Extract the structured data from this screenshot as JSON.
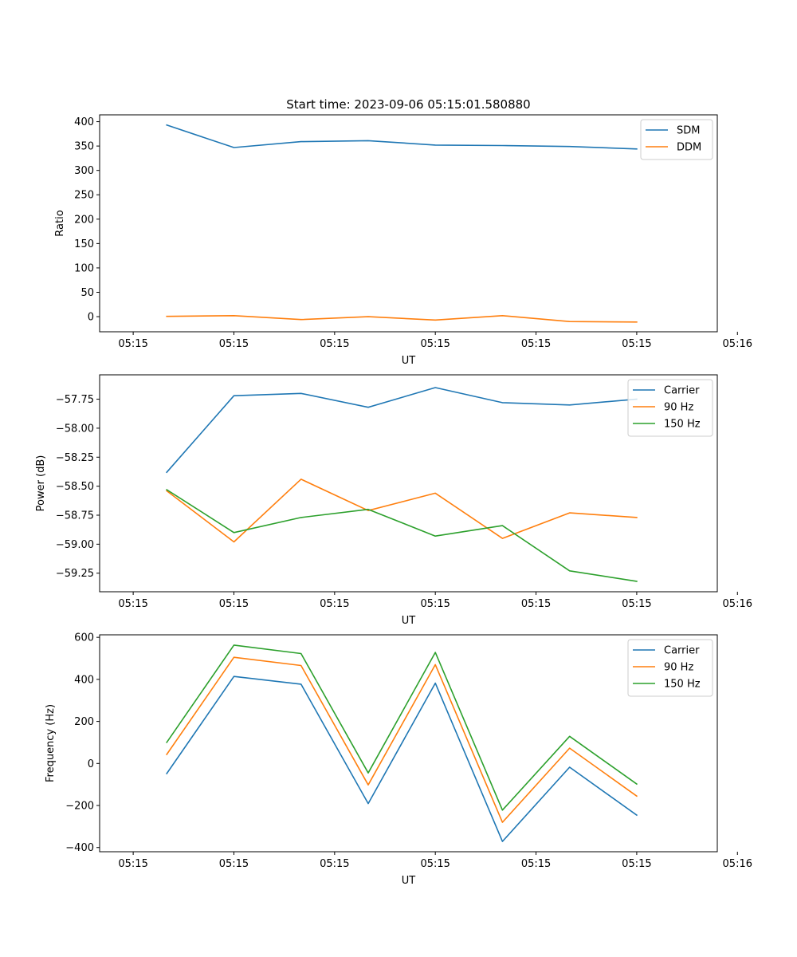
{
  "chart_data": [
    {
      "type": "line",
      "title": "Start time: 2023-09-06 05:15:01.580880",
      "xlabel": "UT",
      "ylabel": "Ratio",
      "xlim": [
        -0.5,
        8.7
      ],
      "x": [
        0.5,
        1.5,
        2.5,
        3.5,
        4.5,
        5.5,
        6.5,
        7.5
      ],
      "x_ticks": [
        0,
        1.5,
        3,
        4.5,
        6,
        7.5,
        9
      ],
      "x_tick_labels": [
        "05:15",
        "05:15",
        "05:15",
        "05:15",
        "05:15",
        "05:15",
        "05:16"
      ],
      "ylim": [
        -31,
        414
      ],
      "y_ticks": [
        0,
        50,
        100,
        150,
        200,
        250,
        300,
        350,
        400
      ],
      "y_tick_labels": [
        "0",
        "50",
        "100",
        "150",
        "200",
        "250",
        "300",
        "350",
        "400"
      ],
      "legend_position": "top-right",
      "series": [
        {
          "name": "SDM",
          "color": "#1f77b4",
          "values": [
            393,
            347,
            359,
            361,
            352,
            351,
            349,
            344
          ]
        },
        {
          "name": "DDM",
          "color": "#ff7f0e",
          "values": [
            0.5,
            2,
            -6,
            0,
            -7,
            2,
            -10,
            -11
          ]
        }
      ]
    },
    {
      "type": "line",
      "title": "",
      "xlabel": "UT",
      "ylabel": "Power (dB)",
      "xlim": [
        -0.5,
        8.7
      ],
      "x": [
        0.5,
        1.5,
        2.5,
        3.5,
        4.5,
        5.5,
        6.5,
        7.5
      ],
      "x_ticks": [
        0,
        1.5,
        3,
        4.5,
        6,
        7.5,
        9
      ],
      "x_tick_labels": [
        "05:15",
        "05:15",
        "05:15",
        "05:15",
        "05:15",
        "05:15",
        "05:16"
      ],
      "ylim": [
        -59.41,
        -57.54
      ],
      "y_ticks": [
        -57.75,
        -58.0,
        -58.25,
        -58.5,
        -58.75,
        -59.0,
        -59.25
      ],
      "y_tick_labels": [
        "−57.75",
        "−58.00",
        "−58.25",
        "−58.50",
        "−58.75",
        "−59.00",
        "−59.25"
      ],
      "legend_position": "top-right",
      "series": [
        {
          "name": "Carrier",
          "color": "#1f77b4",
          "values": [
            -58.38,
            -57.72,
            -57.7,
            -57.82,
            -57.65,
            -57.78,
            -57.8,
            -57.75
          ]
        },
        {
          "name": "90 Hz",
          "color": "#ff7f0e",
          "values": [
            -58.54,
            -58.98,
            -58.44,
            -58.71,
            -58.56,
            -58.95,
            -58.73,
            -58.77
          ]
        },
        {
          "name": "150 Hz",
          "color": "#2ca02c",
          "values": [
            -58.53,
            -58.9,
            -58.77,
            -58.7,
            -58.93,
            -58.84,
            -59.23,
            -59.32
          ]
        }
      ]
    },
    {
      "type": "line",
      "title": "",
      "xlabel": "UT",
      "ylabel": "Frequency (Hz)",
      "xlim": [
        -0.5,
        8.7
      ],
      "x": [
        0.5,
        1.5,
        2.5,
        3.5,
        4.5,
        5.5,
        6.5,
        7.5
      ],
      "x_ticks": [
        0,
        1.5,
        3,
        4.5,
        6,
        7.5,
        9
      ],
      "x_tick_labels": [
        "05:15",
        "05:15",
        "05:15",
        "05:15",
        "05:15",
        "05:15",
        "05:16"
      ],
      "ylim": [
        -420,
        612
      ],
      "y_ticks": [
        -400,
        -200,
        0,
        200,
        400,
        600
      ],
      "y_tick_labels": [
        "−400",
        "−200",
        "0",
        "200",
        "400",
        "600"
      ],
      "legend_position": "top-right",
      "series": [
        {
          "name": "Carrier",
          "color": "#1f77b4",
          "values": [
            -48,
            414,
            377,
            -191,
            382,
            -371,
            -18,
            -246
          ]
        },
        {
          "name": "90 Hz",
          "color": "#ff7f0e",
          "values": [
            43,
            505,
            466,
            -102,
            470,
            -280,
            73,
            -155
          ]
        },
        {
          "name": "150 Hz",
          "color": "#2ca02c",
          "values": [
            100,
            563,
            523,
            -45,
            528,
            -222,
            129,
            -98
          ]
        }
      ]
    }
  ]
}
